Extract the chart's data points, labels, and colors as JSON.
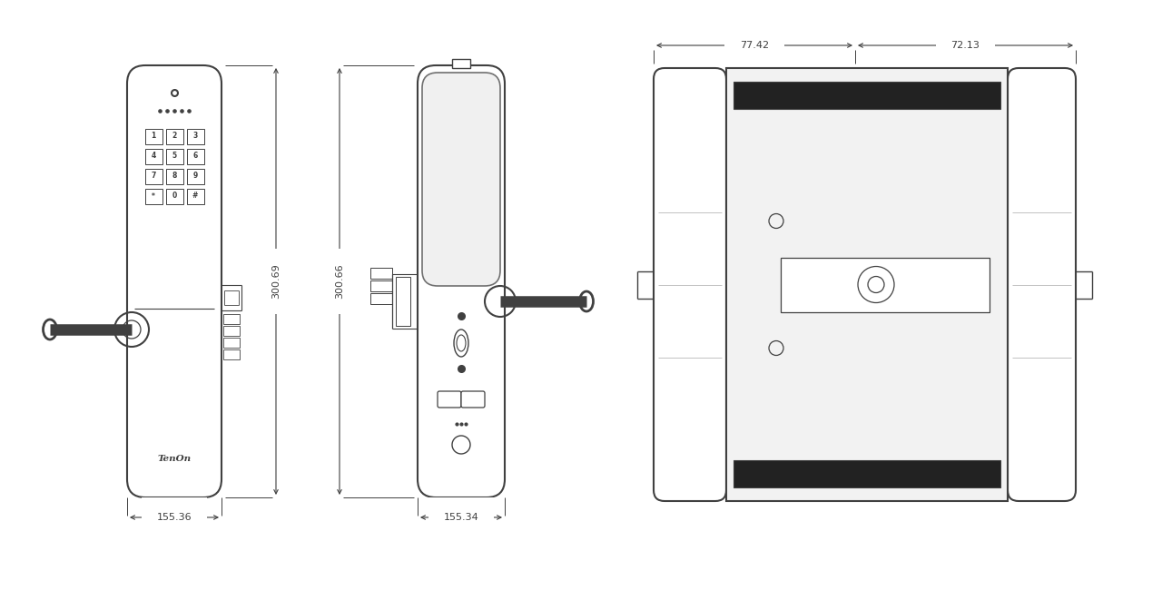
{
  "bg_color": "#ffffff",
  "line_color": "#404040",
  "dim_155_36": "155.36",
  "dim_155_34": "155.34",
  "dim_300_69": "300.69",
  "dim_300_66": "300.66",
  "dim_77_42": "77.42",
  "dim_72_13": "72.13"
}
